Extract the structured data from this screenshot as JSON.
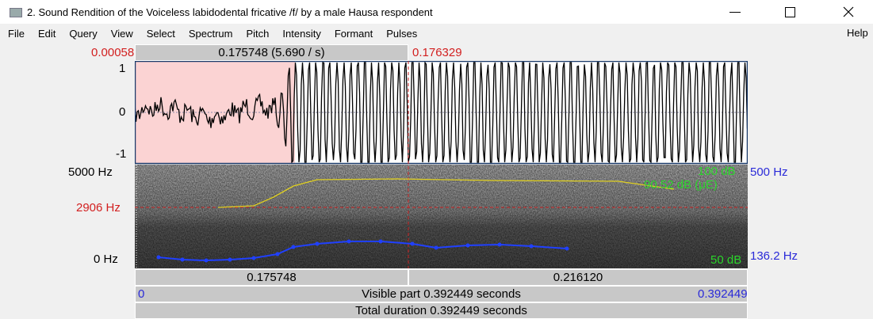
{
  "window": {
    "title": "2. Sound Rendition of the Voiceless labidodental fricative /f/ by a male Hausa respondent",
    "menu": [
      "File",
      "Edit",
      "Query",
      "View",
      "Select",
      "Spectrum",
      "Pitch",
      "Intensity",
      "Formant",
      "Pulses"
    ],
    "help": "Help"
  },
  "selection": {
    "start": "0.000581",
    "duration": "0.175748 (5.690 / s)",
    "end": "0.176329"
  },
  "waveform": {
    "ticks": [
      "1",
      "0",
      "-1"
    ]
  },
  "spectrogram": {
    "left_labels": [
      "5000 Hz",
      "2906 Hz",
      "0 Hz"
    ],
    "right_labels": [
      "500 Hz",
      "136.2 Hz"
    ],
    "intensity_labels": [
      "100 dB",
      "90.52 dB (μE)",
      "50 dB"
    ]
  },
  "time_bar": {
    "segments": [
      "0.175748",
      "0.216120"
    ],
    "visible_start": "0",
    "visible": "Visible part 0.392449 seconds",
    "visible_end": "0.392449",
    "total": "Total duration 0.392449 seconds"
  }
}
